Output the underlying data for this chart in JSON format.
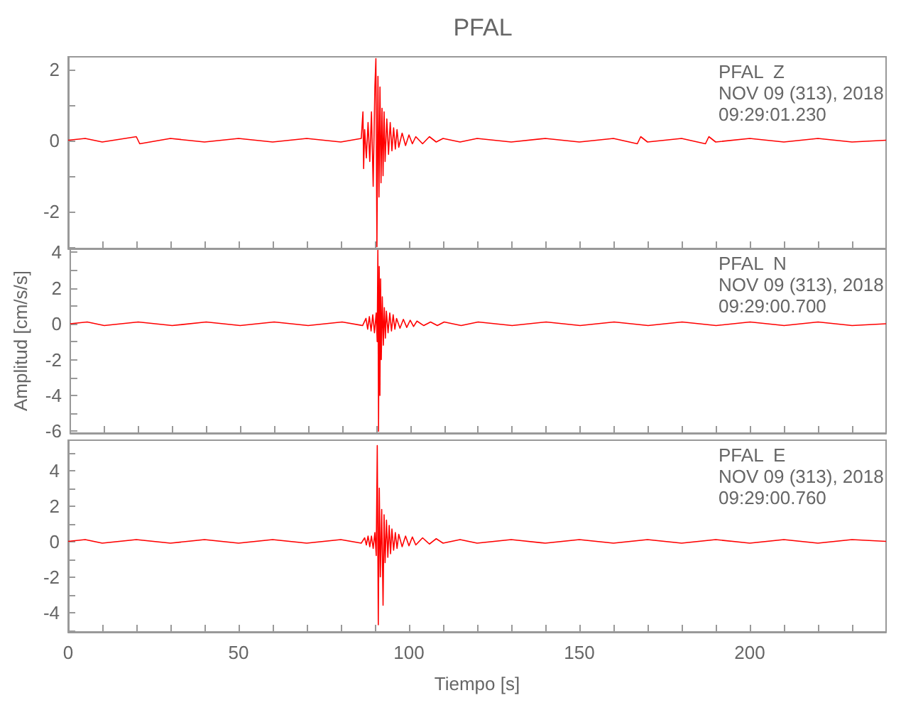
{
  "chart_data": [
    {
      "type": "line",
      "title": "PFAL",
      "annotations": [
        "PFAL  Z",
        "NOV 09 (313), 2018",
        "09:29:01.230"
      ],
      "x": [
        0,
        5,
        10,
        20,
        21,
        30,
        40,
        50,
        60,
        70,
        80,
        86,
        86.5,
        86.7,
        87,
        87.5,
        88,
        88.5,
        89,
        89.5,
        90,
        90.3,
        90.6,
        90.9,
        91.2,
        91.5,
        91.8,
        92.1,
        92.4,
        92.7,
        93,
        93.5,
        94,
        94.5,
        95,
        95.5,
        96,
        96.5,
        97,
        98,
        99,
        100,
        101,
        102,
        104,
        106,
        108,
        110,
        115,
        120,
        130,
        140,
        150,
        160,
        167,
        168,
        170,
        180,
        187,
        188,
        190,
        200,
        210,
        220,
        230,
        240
      ],
      "series": [
        {
          "color": "#ff0000",
          "values": [
            0,
            0.05,
            -0.05,
            0.1,
            -0.1,
            0.05,
            -0.05,
            0.05,
            -0.05,
            0.05,
            -0.05,
            0.05,
            0.8,
            -0.8,
            0.3,
            -0.5,
            0.5,
            -0.6,
            0.8,
            -1.3,
            1.5,
            2.3,
            -3.0,
            1.8,
            -1.6,
            1.5,
            -1.2,
            0.9,
            -1.0,
            0.8,
            -0.6,
            0.6,
            -0.4,
            0.5,
            -0.3,
            0.35,
            -0.25,
            0.3,
            -0.2,
            0.2,
            -0.15,
            0.15,
            -0.1,
            0.1,
            -0.1,
            0.1,
            -0.05,
            0.05,
            -0.05,
            0.05,
            -0.05,
            0.05,
            -0.05,
            0.05,
            -0.1,
            0.1,
            -0.05,
            0.05,
            -0.1,
            0.1,
            -0.05,
            0.05,
            -0.05,
            0.05,
            -0.05,
            0
          ]
        }
      ],
      "xlim": [
        0,
        240
      ],
      "xticks": [
        0,
        {
          "value": 10,
          "label": null
        },
        {
          "value": 20,
          "label": null
        },
        {
          "value": 30,
          "label": null
        },
        {
          "value": 40,
          "label": null
        },
        50,
        {
          "value": 60,
          "label": null
        },
        {
          "value": 70,
          "label": null
        },
        {
          "value": 80,
          "label": null
        },
        {
          "value": 90,
          "label": null
        },
        100,
        {
          "value": 110,
          "label": null
        },
        {
          "value": 120,
          "label": null
        },
        {
          "value": 130,
          "label": null
        },
        {
          "value": 140,
          "label": null
        },
        150,
        {
          "value": 160,
          "label": null
        },
        {
          "value": 170,
          "label": null
        },
        {
          "value": 180,
          "label": null
        },
        {
          "value": 190,
          "label": null
        },
        200,
        {
          "value": 210,
          "label": null
        },
        {
          "value": 220,
          "label": null
        },
        {
          "value": 230,
          "label": null
        }
      ],
      "ylim": [
        -3.05,
        2.35
      ],
      "yticks": [
        {
          "value": -3,
          "label": null
        },
        -2,
        {
          "value": -1,
          "label": null
        },
        0,
        {
          "value": 1,
          "label": null
        },
        2
      ],
      "tick_labels": "y",
      "grid": false
    },
    {
      "type": "line",
      "ylabel": "Amplitud [cm/s/s]",
      "annotations": [
        "PFAL  N",
        "NOV 09 (313), 2018",
        "09:29:00.700"
      ],
      "x": [
        0,
        5,
        10,
        20,
        30,
        40,
        50,
        60,
        70,
        80,
        86,
        87,
        87.5,
        88,
        88.5,
        89,
        89.5,
        90,
        90.3,
        90.5,
        90.7,
        90.9,
        91.1,
        91.3,
        91.5,
        91.8,
        92.1,
        92.4,
        92.7,
        93,
        93.5,
        94,
        94.5,
        95,
        95.5,
        96,
        97,
        98,
        99,
        100,
        101,
        102,
        104,
        106,
        108,
        110,
        115,
        120,
        130,
        140,
        150,
        160,
        170,
        180,
        190,
        200,
        210,
        220,
        230,
        240
      ],
      "series": [
        {
          "color": "#ff0000",
          "values": [
            0,
            0.1,
            -0.1,
            0.1,
            -0.1,
            0.1,
            -0.1,
            0.1,
            -0.1,
            0.1,
            -0.1,
            0.3,
            -0.3,
            0.4,
            -0.4,
            0.5,
            -0.5,
            0.6,
            -1.0,
            4.1,
            -6.0,
            3.2,
            -4.0,
            2.5,
            -2.0,
            1.5,
            -1.2,
            0.9,
            -0.8,
            0.7,
            -0.5,
            0.6,
            -0.4,
            0.5,
            -0.3,
            0.3,
            -0.25,
            0.25,
            -0.2,
            0.2,
            -0.15,
            0.15,
            -0.1,
            0.1,
            -0.1,
            0.1,
            -0.1,
            0.1,
            -0.1,
            0.1,
            -0.1,
            0.1,
            -0.1,
            0.1,
            -0.1,
            0.1,
            -0.1,
            0.1,
            -0.1,
            0
          ]
        }
      ],
      "xlim": [
        0,
        240
      ],
      "xticks": [
        0,
        {
          "value": 10,
          "label": null
        },
        {
          "value": 20,
          "label": null
        },
        {
          "value": 30,
          "label": null
        },
        {
          "value": 40,
          "label": null
        },
        50,
        {
          "value": 60,
          "label": null
        },
        {
          "value": 70,
          "label": null
        },
        {
          "value": 80,
          "label": null
        },
        {
          "value": 90,
          "label": null
        },
        100,
        {
          "value": 110,
          "label": null
        },
        {
          "value": 120,
          "label": null
        },
        {
          "value": 130,
          "label": null
        },
        {
          "value": 140,
          "label": null
        },
        150,
        {
          "value": 160,
          "label": null
        },
        {
          "value": 170,
          "label": null
        },
        {
          "value": 180,
          "label": null
        },
        {
          "value": 190,
          "label": null
        },
        200,
        {
          "value": 210,
          "label": null
        },
        {
          "value": 220,
          "label": null
        },
        {
          "value": 230,
          "label": null
        }
      ],
      "ylim": [
        -6.1,
        4.2
      ],
      "yticks": [
        -6,
        {
          "value": -5,
          "label": null
        },
        -4,
        {
          "value": -3,
          "label": null
        },
        -2,
        {
          "value": -1,
          "label": null
        },
        0,
        {
          "value": 1,
          "label": null
        },
        2,
        {
          "value": 3,
          "label": null
        },
        4
      ],
      "tick_labels": "y",
      "grid": false
    },
    {
      "type": "line",
      "xlabel": "Tiempo [s]",
      "annotations": [
        "PFAL  E",
        "NOV 09 (313), 2018",
        "09:29:00.760"
      ],
      "x": [
        0,
        5,
        10,
        20,
        30,
        40,
        50,
        60,
        70,
        80,
        86,
        87,
        87.5,
        88,
        88.5,
        89,
        89.5,
        90,
        90.4,
        90.7,
        91,
        91.3,
        91.6,
        92,
        92.4,
        92.7,
        93,
        93.4,
        93.8,
        94.2,
        94.6,
        95,
        95.5,
        96,
        96.5,
        97,
        98,
        99,
        100,
        101,
        102,
        104,
        106,
        108,
        110,
        115,
        120,
        130,
        140,
        150,
        160,
        170,
        180,
        190,
        200,
        210,
        220,
        230,
        240
      ],
      "series": [
        {
          "color": "#ff0000",
          "values": [
            0,
            0.1,
            -0.1,
            0.1,
            -0.1,
            0.1,
            -0.1,
            0.1,
            -0.1,
            0.1,
            -0.1,
            0.2,
            -0.2,
            0.3,
            -0.3,
            0.3,
            -0.4,
            0.5,
            -0.8,
            5.4,
            -4.7,
            3.0,
            -2.0,
            1.8,
            -3.6,
            1.5,
            -1.2,
            1.2,
            -0.9,
            0.9,
            -0.7,
            0.7,
            -0.5,
            0.5,
            -0.4,
            0.4,
            -0.3,
            0.3,
            -0.25,
            0.25,
            -0.2,
            0.2,
            -0.15,
            0.15,
            -0.1,
            0.1,
            -0.1,
            0.1,
            -0.1,
            0.1,
            -0.1,
            0.1,
            -0.1,
            0.1,
            -0.1,
            0.1,
            -0.1,
            0.1,
            0
          ]
        }
      ],
      "xlim": [
        0,
        240
      ],
      "xticks": [
        0,
        {
          "value": 10,
          "label": null
        },
        {
          "value": 20,
          "label": null
        },
        {
          "value": 30,
          "label": null
        },
        {
          "value": 40,
          "label": null
        },
        50,
        {
          "value": 60,
          "label": null
        },
        {
          "value": 70,
          "label": null
        },
        {
          "value": 80,
          "label": null
        },
        {
          "value": 90,
          "label": null
        },
        100,
        {
          "value": 110,
          "label": null
        },
        {
          "value": 120,
          "label": null
        },
        {
          "value": 130,
          "label": null
        },
        {
          "value": 140,
          "label": null
        },
        150,
        {
          "value": 160,
          "label": null
        },
        {
          "value": 170,
          "label": null
        },
        {
          "value": 180,
          "label": null
        },
        {
          "value": 190,
          "label": null
        },
        200,
        {
          "value": 210,
          "label": null
        },
        {
          "value": 220,
          "label": null
        },
        {
          "value": 230,
          "label": null
        }
      ],
      "ylim": [
        -5.1,
        5.7
      ],
      "yticks": [
        {
          "value": -5,
          "label": null
        },
        -4,
        {
          "value": -3,
          "label": null
        },
        -2,
        {
          "value": -1,
          "label": null
        },
        0,
        {
          "value": 1,
          "label": null
        },
        2,
        {
          "value": 3,
          "label": null
        },
        4,
        {
          "value": 5,
          "label": null
        }
      ],
      "grid": false
    }
  ]
}
